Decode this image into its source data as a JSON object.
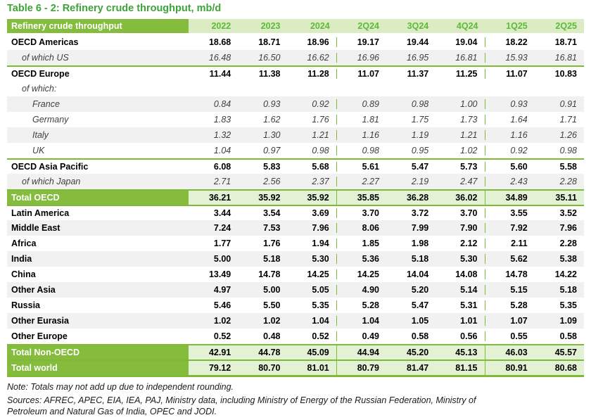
{
  "title": "Table 6 - 2: Refinery crude throughput, mb/d",
  "colors": {
    "band_green": "#85BC3D",
    "line_green": "#7FB935",
    "header_light": "#DBEBC3",
    "total_light": "#E3F1D5",
    "header_num": "#5DB93A",
    "title_green": "#3EA33A",
    "stripe": "#F1F1F1",
    "sub_text": "#3F3F3F"
  },
  "table": {
    "header": {
      "label": "Refinery crude throughput",
      "columns": [
        "2022",
        "2023",
        "2024",
        "2Q24",
        "3Q24",
        "4Q24",
        "1Q25",
        "2Q25"
      ]
    },
    "rows": [
      {
        "label": "OECD Americas",
        "type": "main",
        "indent": 0,
        "stripe": false,
        "sep": false,
        "values": [
          "18.68",
          "18.71",
          "18.96",
          "19.17",
          "19.44",
          "19.04",
          "18.22",
          "18.71"
        ]
      },
      {
        "label": "of which US",
        "type": "sub",
        "indent": 1,
        "stripe": true,
        "sep": false,
        "values": [
          "16.48",
          "16.50",
          "16.62",
          "16.96",
          "16.95",
          "16.81",
          "15.93",
          "16.81"
        ]
      },
      {
        "label": "OECD Europe",
        "type": "main",
        "indent": 0,
        "stripe": false,
        "sep": true,
        "values": [
          "11.44",
          "11.38",
          "11.28",
          "11.07",
          "11.37",
          "11.25",
          "11.07",
          "10.83"
        ]
      },
      {
        "label": "of which:",
        "type": "sub",
        "indent": 1,
        "stripe": false,
        "sep": false,
        "values": [
          "",
          "",
          "",
          "",
          "",
          "",
          "",
          ""
        ]
      },
      {
        "label": "France",
        "type": "sub",
        "indent": 2,
        "stripe": true,
        "sep": false,
        "values": [
          "0.84",
          "0.93",
          "0.92",
          "0.89",
          "0.98",
          "1.00",
          "0.93",
          "0.91"
        ]
      },
      {
        "label": "Germany",
        "type": "sub",
        "indent": 2,
        "stripe": false,
        "sep": false,
        "values": [
          "1.83",
          "1.62",
          "1.76",
          "1.81",
          "1.75",
          "1.73",
          "1.64",
          "1.71"
        ]
      },
      {
        "label": "Italy",
        "type": "sub",
        "indent": 2,
        "stripe": true,
        "sep": false,
        "values": [
          "1.32",
          "1.30",
          "1.21",
          "1.16",
          "1.19",
          "1.21",
          "1.16",
          "1.26"
        ]
      },
      {
        "label": "UK",
        "type": "sub",
        "indent": 2,
        "stripe": false,
        "sep": false,
        "values": [
          "1.04",
          "0.97",
          "0.98",
          "0.98",
          "0.95",
          "1.02",
          "0.92",
          "0.98"
        ]
      },
      {
        "label": "OECD Asia Pacific",
        "type": "main",
        "indent": 0,
        "stripe": false,
        "sep": true,
        "values": [
          "6.08",
          "5.83",
          "5.68",
          "5.61",
          "5.47",
          "5.73",
          "5.60",
          "5.58"
        ]
      },
      {
        "label": "of which Japan",
        "type": "sub",
        "indent": 1,
        "stripe": true,
        "sep": false,
        "values": [
          "2.71",
          "2.56",
          "2.37",
          "2.27",
          "2.19",
          "2.47",
          "2.43",
          "2.28"
        ]
      },
      {
        "label": "Total OECD",
        "type": "total",
        "indent": 0,
        "stripe": false,
        "sep": true,
        "values": [
          "36.21",
          "35.92",
          "35.92",
          "35.85",
          "36.28",
          "36.02",
          "34.89",
          "35.11"
        ]
      },
      {
        "label": "Latin America",
        "type": "main",
        "indent": 0,
        "stripe": false,
        "sep": true,
        "values": [
          "3.44",
          "3.54",
          "3.69",
          "3.70",
          "3.72",
          "3.70",
          "3.55",
          "3.52"
        ]
      },
      {
        "label": "Middle East",
        "type": "main",
        "indent": 0,
        "stripe": true,
        "sep": false,
        "values": [
          "7.24",
          "7.53",
          "7.96",
          "8.06",
          "7.99",
          "7.90",
          "7.92",
          "7.96"
        ]
      },
      {
        "label": "Africa",
        "type": "main",
        "indent": 0,
        "stripe": false,
        "sep": false,
        "values": [
          "1.77",
          "1.76",
          "1.94",
          "1.85",
          "1.98",
          "2.12",
          "2.11",
          "2.28"
        ]
      },
      {
        "label": "India",
        "type": "main",
        "indent": 0,
        "stripe": true,
        "sep": false,
        "values": [
          "5.00",
          "5.18",
          "5.30",
          "5.36",
          "5.18",
          "5.30",
          "5.62",
          "5.38"
        ]
      },
      {
        "label": "China",
        "type": "main",
        "indent": 0,
        "stripe": false,
        "sep": false,
        "values": [
          "13.49",
          "14.78",
          "14.25",
          "14.25",
          "14.04",
          "14.08",
          "14.78",
          "14.22"
        ]
      },
      {
        "label": "Other Asia",
        "type": "main",
        "indent": 0,
        "stripe": true,
        "sep": false,
        "values": [
          "4.97",
          "5.00",
          "5.05",
          "4.90",
          "5.20",
          "5.14",
          "5.15",
          "5.18"
        ]
      },
      {
        "label": "Russia",
        "type": "main",
        "indent": 0,
        "stripe": false,
        "sep": false,
        "values": [
          "5.46",
          "5.50",
          "5.35",
          "5.28",
          "5.47",
          "5.31",
          "5.28",
          "5.35"
        ]
      },
      {
        "label": "Other Eurasia",
        "type": "main",
        "indent": 0,
        "stripe": true,
        "sep": false,
        "values": [
          "1.02",
          "1.02",
          "1.04",
          "1.04",
          "1.05",
          "1.01",
          "1.07",
          "1.09"
        ]
      },
      {
        "label": "Other Europe",
        "type": "main",
        "indent": 0,
        "stripe": false,
        "sep": false,
        "values": [
          "0.52",
          "0.48",
          "0.52",
          "0.49",
          "0.58",
          "0.56",
          "0.55",
          "0.58"
        ]
      },
      {
        "label": "Total Non-OECD",
        "type": "total",
        "indent": 0,
        "stripe": false,
        "sep": true,
        "values": [
          "42.91",
          "44.78",
          "45.09",
          "44.94",
          "45.20",
          "45.13",
          "46.03",
          "45.57"
        ]
      },
      {
        "label": "Total world",
        "type": "total",
        "indent": 0,
        "stripe": false,
        "sep": true,
        "values": [
          "79.12",
          "80.70",
          "81.01",
          "80.79",
          "81.47",
          "81.15",
          "80.91",
          "80.68"
        ]
      }
    ]
  },
  "footnotes": {
    "note": "Note: Totals may not add up due to independent rounding.",
    "sources": "Sources: AFREC, APEC, EIA, IEA, PAJ, Ministry data, including Ministry of Energy of the Russian Federation, Ministry of Petroleum and Natural Gas of India, OPEC and JODI."
  }
}
